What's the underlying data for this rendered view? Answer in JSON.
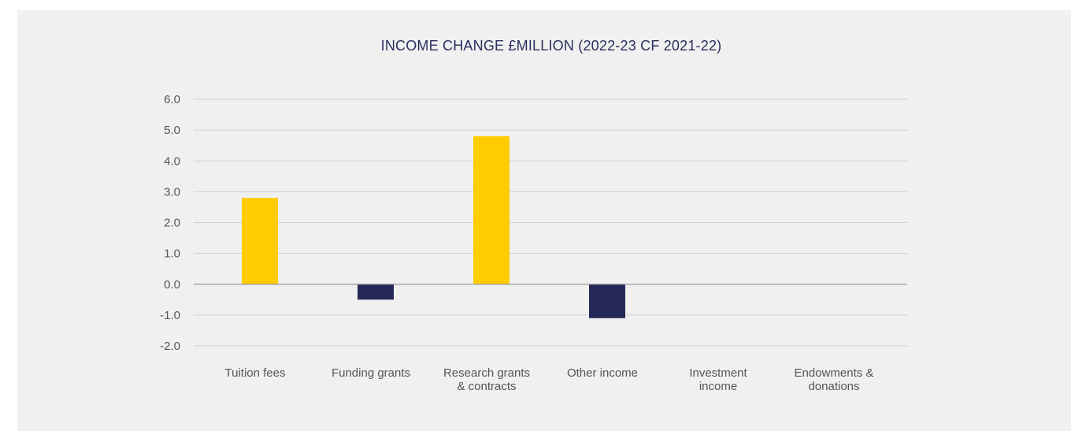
{
  "chart_data": {
    "type": "bar",
    "title": "INCOME CHANGE £MILLION (2022-23 CF 2021-22)",
    "categories": [
      [
        "Tuition fees"
      ],
      [
        "Funding grants"
      ],
      [
        "Research grants",
        "& contracts"
      ],
      [
        "Other income"
      ],
      [
        "Investment",
        "income"
      ],
      [
        "Endowments &",
        "donations"
      ]
    ],
    "values": [
      2.8,
      -0.5,
      4.8,
      -1.1,
      0.0,
      0.0
    ],
    "ylim": [
      -2.0,
      6.0
    ],
    "yticks": [
      "6.0",
      "5.0",
      "4.0",
      "3.0",
      "2.0",
      "1.0",
      "0.0",
      "-1.0",
      "-2.0"
    ],
    "ytick_values": [
      6,
      5,
      4,
      3,
      2,
      1,
      0,
      -1,
      -2
    ],
    "grid": true,
    "colors": {
      "positive": "#ffcc00",
      "negative": "#232857",
      "grid": "#cfcfcf",
      "zero_line": "#999999"
    }
  }
}
